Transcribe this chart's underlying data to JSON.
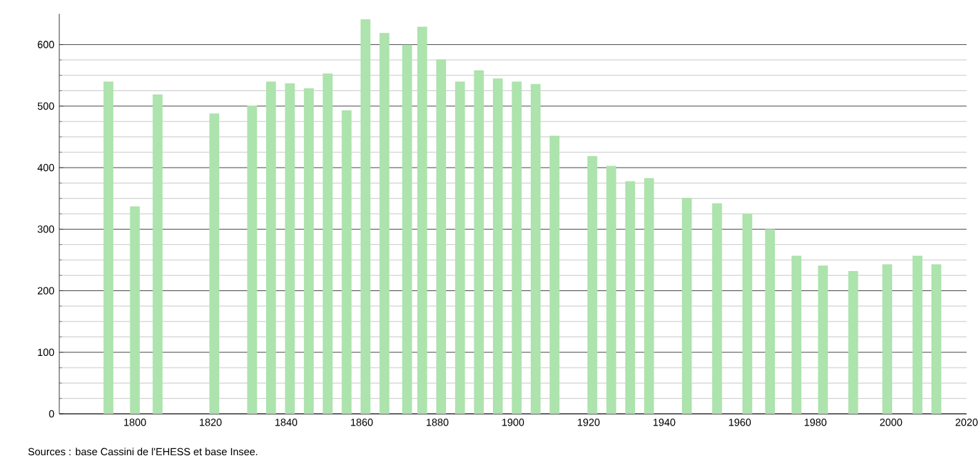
{
  "chart_data": {
    "type": "bar",
    "x": [
      1793,
      1800,
      1806,
      1821,
      1831,
      1836,
      1841,
      1846,
      1851,
      1856,
      1861,
      1866,
      1872,
      1876,
      1881,
      1886,
      1891,
      1896,
      1901,
      1906,
      1911,
      1921,
      1926,
      1931,
      1936,
      1946,
      1954,
      1962,
      1968,
      1975,
      1982,
      1990,
      1999,
      2007,
      2012
    ],
    "values": [
      540,
      337,
      519,
      488,
      501,
      540,
      537,
      529,
      553,
      493,
      641,
      619,
      600,
      629,
      576,
      540,
      558,
      545,
      540,
      536,
      452,
      419,
      403,
      378,
      383,
      351,
      342,
      325,
      300,
      257,
      241,
      232,
      243,
      257,
      243
    ],
    "color": "#ade3ad",
    "xlim": [
      1780,
      2020
    ],
    "xticks": [
      1800,
      1820,
      1840,
      1860,
      1880,
      1900,
      1920,
      1940,
      1960,
      1980,
      2000,
      2020
    ],
    "ylim": [
      0,
      650
    ],
    "yticks": [
      0,
      100,
      200,
      300,
      400,
      500,
      600
    ],
    "grid": "y",
    "annotations": [
      "Sources : base Cassini de l'EHESS et base Insee."
    ]
  }
}
